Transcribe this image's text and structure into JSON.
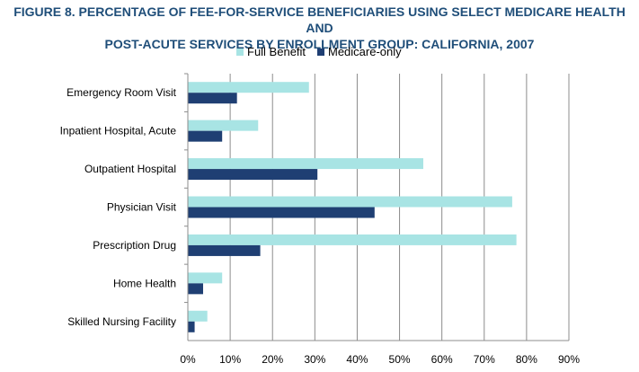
{
  "title": {
    "line1": "FIGURE 8. PERCENTAGE OF FEE-FOR-SERVICE BENEFICIARIES USING SELECT MEDICARE HEALTH AND",
    "line2": "POST-ACUTE SERVICES BY ENROLLMENT GROUP:  CALIFORNIA, 2007"
  },
  "chart_data": {
    "type": "bar",
    "orientation": "horizontal",
    "categories": [
      "Emergency Room Visit",
      "Inpatient Hospital, Acute",
      "Outpatient Hospital",
      "Physician Visit",
      "Prescription Drug",
      "Home Health",
      "Skilled Nursing Facility"
    ],
    "series": [
      {
        "name": "Full Benefit",
        "color": "#a8e4e4",
        "values": [
          28.5,
          16.5,
          55.5,
          76.5,
          77.5,
          8.0,
          4.5
        ]
      },
      {
        "name": "Medicare-only",
        "color": "#1f3f73",
        "values": [
          11.5,
          8.0,
          30.5,
          44.0,
          17.0,
          3.5,
          1.5
        ]
      }
    ],
    "xlim": [
      0,
      90
    ],
    "xticks": [
      "0%",
      "10%",
      "20%",
      "30%",
      "40%",
      "50%",
      "60%",
      "70%",
      "80%",
      "90%"
    ],
    "grid": true,
    "legend_position": "top"
  }
}
